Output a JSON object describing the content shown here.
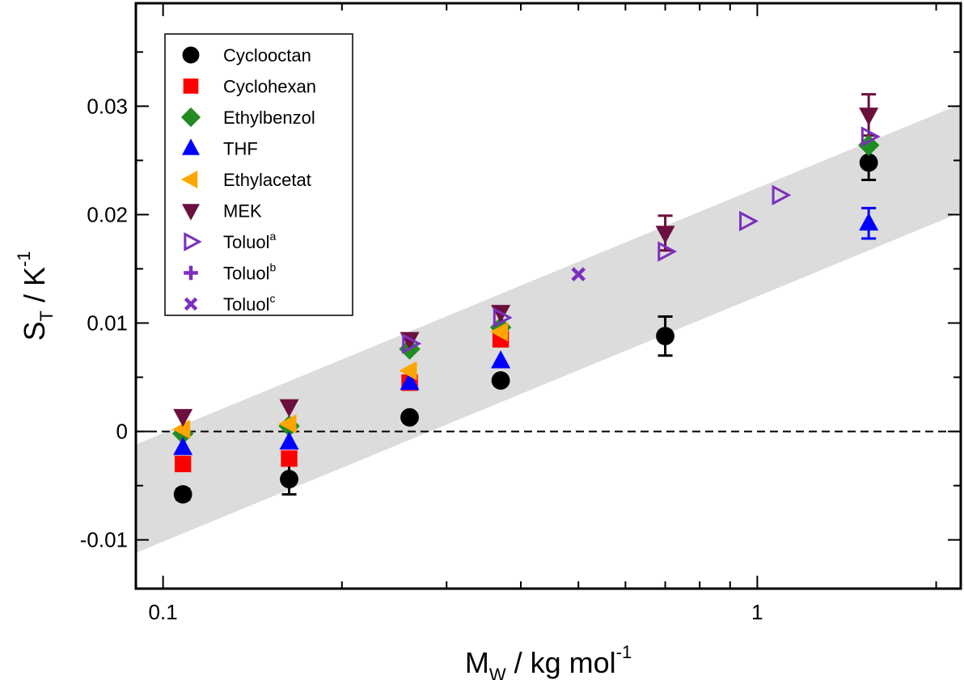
{
  "chart_data": {
    "type": "scatter",
    "x_scale": "log",
    "xlim": [
      0.09,
      2.2
    ],
    "ylim": [
      -0.0145,
      0.0395
    ],
    "xlabel": {
      "main": "M",
      "sub": "W",
      "rest": " / kg mol",
      "sup": "-1"
    },
    "ylabel": {
      "main": "S",
      "sub": "T",
      "rest": " / K",
      "sup": "-1"
    },
    "x_ticks": [
      {
        "value": 0.1,
        "label": "0.1"
      },
      {
        "value": 1,
        "label": "1"
      }
    ],
    "y_ticks": [
      {
        "value": -0.01,
        "label": "-0.01"
      },
      {
        "value": 0,
        "label": "0"
      },
      {
        "value": 0.01,
        "label": "0.01"
      },
      {
        "value": 0.02,
        "label": "0.02"
      },
      {
        "value": 0.03,
        "label": "0.03"
      }
    ],
    "zero_line": {
      "y": 0,
      "style": "dashed"
    },
    "band": {
      "color": "#dcdcdc",
      "upper": [
        [
          0.09,
          -0.0012
        ],
        [
          2.2,
          0.0302
        ]
      ],
      "lower": [
        [
          0.09,
          -0.0112
        ],
        [
          2.2,
          0.0202
        ]
      ]
    },
    "legend": {
      "position": "top-left"
    },
    "series": [
      {
        "name": "Cyclooctan",
        "sup": "",
        "marker": "circle",
        "color": "#000000",
        "points": [
          {
            "x": 0.108,
            "y": -0.0058,
            "err": 0.0005
          },
          {
            "x": 0.163,
            "y": -0.0044,
            "err": 0.0014
          },
          {
            "x": 0.26,
            "y": 0.0013
          },
          {
            "x": 0.37,
            "y": 0.0047
          },
          {
            "x": 0.7,
            "y": 0.0088,
            "err": 0.0018
          },
          {
            "x": 1.54,
            "y": 0.0248,
            "err": 0.0016
          }
        ]
      },
      {
        "name": "Cyclohexan",
        "sup": "",
        "marker": "square",
        "color": "#ff0000",
        "points": [
          {
            "x": 0.108,
            "y": -0.003
          },
          {
            "x": 0.163,
            "y": -0.0025
          },
          {
            "x": 0.26,
            "y": 0.0045
          },
          {
            "x": 0.37,
            "y": 0.0085
          }
        ]
      },
      {
        "name": "Ethylbenzol",
        "sup": "",
        "marker": "diamond",
        "color": "#228b22",
        "points": [
          {
            "x": 0.108,
            "y": -0.0002
          },
          {
            "x": 0.163,
            "y": 0.0005
          },
          {
            "x": 0.26,
            "y": 0.0076
          },
          {
            "x": 0.37,
            "y": 0.0096
          },
          {
            "x": 1.54,
            "y": 0.0264
          }
        ]
      },
      {
        "name": "THF",
        "sup": "",
        "marker": "triangle-up",
        "color": "#0000ff",
        "points": [
          {
            "x": 0.108,
            "y": -0.0015
          },
          {
            "x": 0.163,
            "y": -0.001
          },
          {
            "x": 0.26,
            "y": 0.0045
          },
          {
            "x": 0.37,
            "y": 0.0065
          },
          {
            "x": 1.54,
            "y": 0.0192,
            "err": 0.0014
          }
        ]
      },
      {
        "name": "Ethylacetat",
        "sup": "",
        "marker": "triangle-left",
        "color": "#ffa500",
        "points": [
          {
            "x": 0.108,
            "y": 0.0002
          },
          {
            "x": 0.163,
            "y": 0.0007
          },
          {
            "x": 0.26,
            "y": 0.0056
          },
          {
            "x": 0.37,
            "y": 0.0092
          }
        ]
      },
      {
        "name": "MEK",
        "sup": "",
        "marker": "triangle-down",
        "color": "#6b0f3e",
        "points": [
          {
            "x": 0.108,
            "y": 0.0014
          },
          {
            "x": 0.163,
            "y": 0.0023
          },
          {
            "x": 0.26,
            "y": 0.0085
          },
          {
            "x": 0.37,
            "y": 0.011
          },
          {
            "x": 0.7,
            "y": 0.0183,
            "err": 0.0016
          },
          {
            "x": 1.54,
            "y": 0.0292,
            "err": 0.0019
          }
        ]
      },
      {
        "name": "Toluol",
        "sup": "a",
        "marker": "triangle-right-open",
        "color": "#7b2fbe",
        "points": [
          {
            "x": 0.26,
            "y": 0.0081
          },
          {
            "x": 0.37,
            "y": 0.0105
          },
          {
            "x": 0.7,
            "y": 0.0166
          },
          {
            "x": 0.96,
            "y": 0.0194
          },
          {
            "x": 1.09,
            "y": 0.0218
          },
          {
            "x": 1.54,
            "y": 0.0272
          }
        ]
      },
      {
        "name": "Toluol",
        "sup": "b",
        "marker": "plus",
        "color": "#7b2fbe",
        "points": []
      },
      {
        "name": "Toluol",
        "sup": "c",
        "marker": "cross",
        "color": "#7b2fbe",
        "points": [
          {
            "x": 0.5,
            "y": 0.0145
          }
        ]
      }
    ]
  }
}
